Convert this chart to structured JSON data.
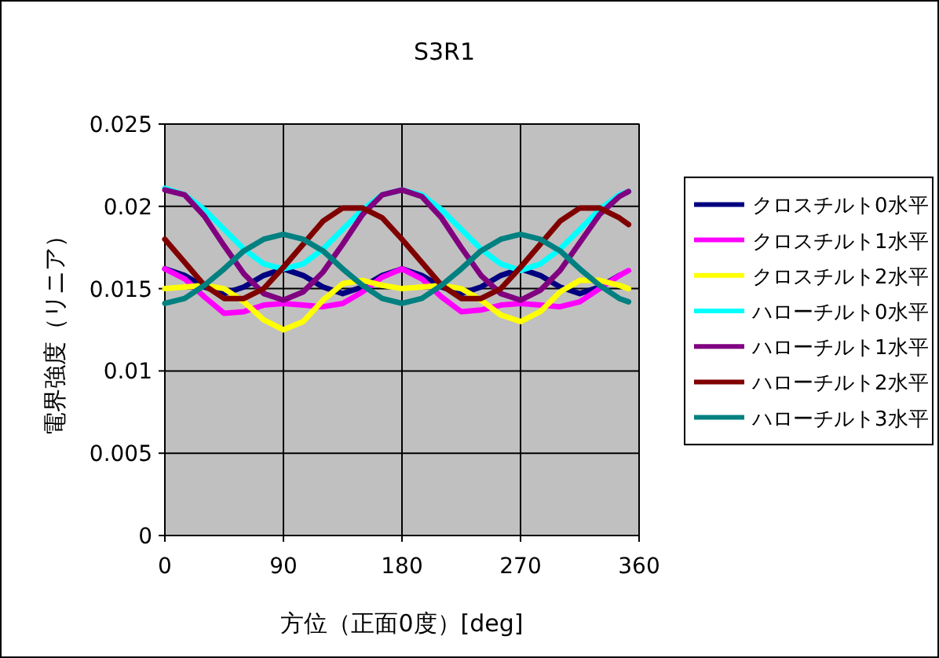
{
  "chart_data": {
    "type": "line",
    "title": "S3R1",
    "xlabel": "方位（正面0度）[deg]",
    "ylabel": "電界強度（リニア）",
    "x": [
      0,
      15,
      30,
      45,
      60,
      75,
      90,
      105,
      120,
      135,
      150,
      165,
      180,
      195,
      210,
      225,
      240,
      255,
      270,
      285,
      300,
      315,
      330,
      345,
      352
    ],
    "xlim": [
      0,
      360
    ],
    "xticks": [
      0,
      90,
      180,
      270,
      360
    ],
    "ylim": [
      0,
      0.025
    ],
    "yticks": [
      0,
      0.005,
      0.01,
      0.015,
      0.02,
      0.025
    ],
    "grid": true,
    "legend": "right",
    "series": [
      {
        "name": "クロスチルト0水平",
        "color": "#000080",
        "values": [
          0.0162,
          0.0158,
          0.0151,
          0.0147,
          0.0151,
          0.0158,
          0.0162,
          0.0158,
          0.0151,
          0.0147,
          0.0151,
          0.0158,
          0.0162,
          0.0158,
          0.0151,
          0.0147,
          0.0151,
          0.0158,
          0.0162,
          0.0158,
          0.0151,
          0.0147,
          0.0151,
          0.0158,
          null
        ]
      },
      {
        "name": "クロスチルト1水平",
        "color": "#ff00ff",
        "values": [
          0.0162,
          0.0156,
          0.0145,
          0.0135,
          0.0136,
          0.014,
          0.0141,
          0.014,
          0.0139,
          0.0141,
          0.0148,
          0.0157,
          0.0162,
          0.0156,
          0.0145,
          0.0136,
          0.0137,
          0.014,
          0.0141,
          0.014,
          0.0139,
          0.0142,
          0.015,
          0.0158,
          0.0161
        ]
      },
      {
        "name": "クロスチルト2水平",
        "color": "#ffff00",
        "values": [
          0.015,
          0.0151,
          0.0152,
          0.015,
          0.0142,
          0.0131,
          0.0125,
          0.013,
          0.0143,
          0.0153,
          0.0155,
          0.0152,
          0.015,
          0.0151,
          0.0152,
          0.015,
          0.0143,
          0.0134,
          0.013,
          0.0136,
          0.0148,
          0.0155,
          0.0155,
          0.0152,
          0.015
        ]
      },
      {
        "name": "ハローチルト0水平",
        "color": "#00ffff",
        "values": [
          0.0211,
          0.0207,
          0.0198,
          0.0186,
          0.0174,
          0.0165,
          0.0162,
          0.0165,
          0.0174,
          0.0186,
          0.0198,
          0.0207,
          0.021,
          0.0207,
          0.0198,
          0.0186,
          0.0174,
          0.0165,
          0.0161,
          0.0165,
          0.0174,
          0.0186,
          0.0198,
          0.0207,
          0.0209
        ]
      },
      {
        "name": "ハローチルト1水平",
        "color": "#800080",
        "values": [
          0.021,
          0.0207,
          0.0194,
          0.0176,
          0.0159,
          0.0147,
          0.0143,
          0.0148,
          0.016,
          0.0177,
          0.0195,
          0.0207,
          0.021,
          0.0206,
          0.0193,
          0.0175,
          0.0158,
          0.0147,
          0.0143,
          0.0149,
          0.0161,
          0.0178,
          0.0195,
          0.0206,
          0.0209
        ]
      },
      {
        "name": "ハローチルト2水平",
        "color": "#800000",
        "values": [
          0.018,
          0.0166,
          0.0152,
          0.0144,
          0.0144,
          0.015,
          0.0163,
          0.0177,
          0.0191,
          0.0199,
          0.0199,
          0.0193,
          0.018,
          0.0166,
          0.0152,
          0.0144,
          0.0144,
          0.015,
          0.0163,
          0.0177,
          0.0191,
          0.0199,
          0.0199,
          0.0193,
          0.0189
        ]
      },
      {
        "name": "ハローチルト3水平",
        "color": "#008080",
        "values": [
          0.0141,
          0.0144,
          0.0152,
          0.0162,
          0.0173,
          0.018,
          0.0183,
          0.018,
          0.0173,
          0.0162,
          0.0152,
          0.0144,
          0.0141,
          0.0144,
          0.0152,
          0.0162,
          0.0173,
          0.018,
          0.0183,
          0.018,
          0.0173,
          0.0162,
          0.0152,
          0.0144,
          0.0142
        ]
      }
    ]
  }
}
